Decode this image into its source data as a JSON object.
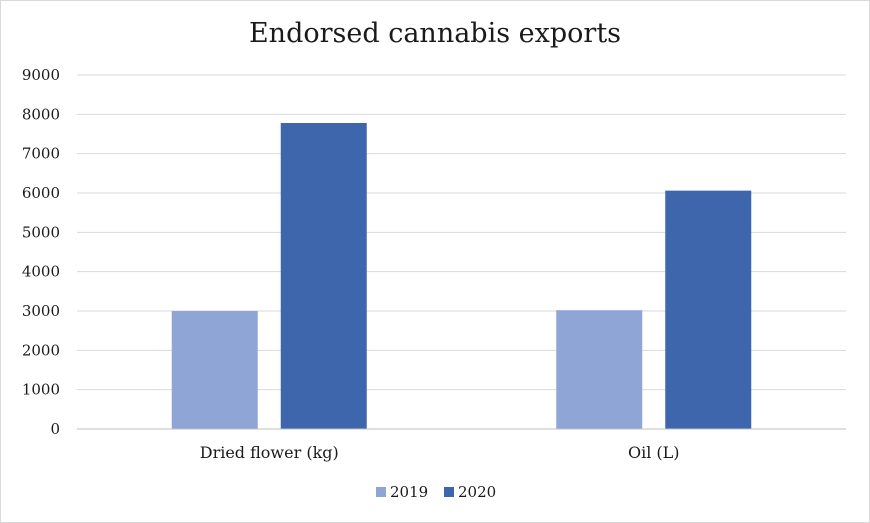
{
  "chart_data": {
    "type": "bar",
    "title": "Endorsed cannabis exports",
    "categories": [
      "Dried flower (kg)",
      "Oil (L)"
    ],
    "series": [
      {
        "name": "2019",
        "values": [
          3000,
          3020
        ],
        "color": "#8fa5d6"
      },
      {
        "name": "2020",
        "values": [
          7780,
          6060
        ],
        "color": "#3d66ad"
      }
    ],
    "y_ticks": [
      "0",
      "1000",
      "2000",
      "3000",
      "4000",
      "5000",
      "6000",
      "7000",
      "8000",
      "9000"
    ],
    "ylim": [
      0,
      9000
    ],
    "grid": true,
    "legend": "bottom"
  }
}
